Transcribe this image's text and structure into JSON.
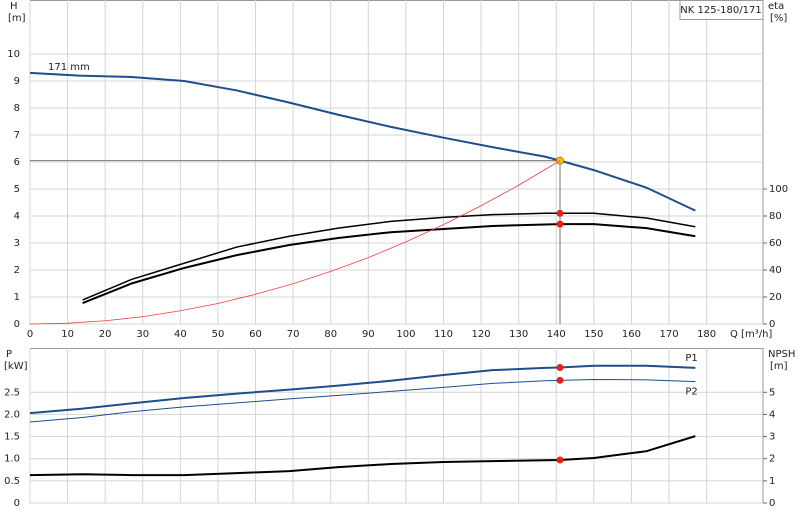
{
  "chart_data": [
    {
      "type": "line",
      "title": "NK 125-180/171",
      "ylabel": "H",
      "yunit": "[m]",
      "y2label": "eta",
      "y2unit": "[%]",
      "xlabel": "Q [m³/h]",
      "annotation": "171 mm",
      "xlim": [
        0,
        195
      ],
      "xticks": [
        0,
        10,
        20,
        30,
        40,
        50,
        60,
        70,
        80,
        90,
        100,
        110,
        120,
        130,
        140,
        150,
        160,
        170,
        180
      ],
      "ylim": [
        0,
        12
      ],
      "yticks": [
        0,
        1,
        2,
        3,
        4,
        5,
        6,
        7,
        8,
        9,
        10
      ],
      "y2lim": [
        0,
        240
      ],
      "y2ticks": [
        0,
        20,
        40,
        60,
        80,
        100
      ],
      "grid": true,
      "duty_x": 141,
      "duty_y": 6.05,
      "series": [
        {
          "color": "#1f4e8c",
          "width": 2,
          "dot_color": "#f5c400",
          "x": [
            0,
            13,
            27,
            41,
            55,
            69,
            82,
            96,
            110,
            123,
            137,
            141,
            150,
            164,
            177
          ],
          "values": [
            9.3,
            9.2,
            9.15,
            9.0,
            8.65,
            8.2,
            7.75,
            7.3,
            6.9,
            6.55,
            6.2,
            6.05,
            5.7,
            5.05,
            4.2
          ]
        },
        {
          "color": "#000000",
          "width": 1.5,
          "axis": "y2",
          "dot_color": "#e8201a",
          "x": [
            14,
            27,
            41,
            55,
            69,
            82,
            96,
            110,
            123,
            137,
            141,
            150,
            164,
            177
          ],
          "values": [
            17.8,
            33,
            45,
            57,
            65,
            71,
            76,
            79,
            81,
            82,
            82,
            82,
            78.5,
            72
          ]
        },
        {
          "color": "#000000",
          "width": 2,
          "axis": "y2",
          "dot_color": "#e8201a",
          "x": [
            14,
            27,
            41,
            55,
            69,
            82,
            96,
            110,
            123,
            137,
            141,
            150,
            164,
            177
          ],
          "values": [
            15.5,
            30,
            41.5,
            51,
            58.5,
            63.7,
            68,
            70.4,
            72.6,
            73.7,
            74,
            74,
            71,
            65
          ]
        },
        {
          "color": "#f04040",
          "width": 0.8,
          "x": [
            0,
            10,
            20,
            30,
            40,
            50,
            60,
            70,
            80,
            90,
            100,
            110,
            120,
            130,
            141
          ],
          "values": [
            0,
            0.03,
            0.12,
            0.27,
            0.49,
            0.76,
            1.1,
            1.49,
            1.95,
            2.46,
            3.04,
            3.68,
            4.38,
            5.14,
            6.05
          ]
        }
      ]
    },
    {
      "type": "line",
      "ylabel": "P",
      "yunit": "[kW]",
      "y2label": "NPSH",
      "y2unit": "[m]",
      "xlim": [
        0,
        195
      ],
      "xticks": [
        0,
        10,
        20,
        30,
        40,
        50,
        60,
        70,
        80,
        90,
        100,
        110,
        120,
        130,
        140,
        150,
        160,
        170,
        180
      ],
      "ylim": [
        0,
        3.5
      ],
      "yticks": [
        0,
        0.5,
        {
          "value": 1,
          "label": "1.0"
        },
        1.5,
        {
          "value": 2,
          "label": "2.0"
        },
        2.5
      ],
      "y2lim": [
        0,
        7
      ],
      "y2ticks": [
        0,
        1,
        2,
        3,
        4,
        5
      ],
      "grid": true,
      "duty_x": 141,
      "series": [
        {
          "name": "P1",
          "color": "#1f4e8c",
          "width": 2,
          "dot_color": "#e8201a",
          "x": [
            0,
            14,
            27,
            41,
            55,
            69,
            82,
            96,
            110,
            123,
            137,
            141,
            150,
            164,
            177
          ],
          "values": [
            2.03,
            2.13,
            2.25,
            2.37,
            2.47,
            2.56,
            2.65,
            2.76,
            2.89,
            3.0,
            3.05,
            3.06,
            3.1,
            3.1,
            3.05
          ]
        },
        {
          "name": "P2",
          "color": "#1f4e8c",
          "width": 1,
          "dot_color": "#e8201a",
          "x": [
            0,
            14,
            27,
            41,
            55,
            69,
            82,
            96,
            110,
            123,
            137,
            141,
            150,
            164,
            177
          ],
          "values": [
            1.83,
            1.93,
            2.06,
            2.17,
            2.26,
            2.35,
            2.43,
            2.52,
            2.61,
            2.7,
            2.76,
            2.77,
            2.79,
            2.78,
            2.74
          ]
        },
        {
          "color": "#000000",
          "width": 2,
          "axis": "y2",
          "dot_color": "#e8201a",
          "x": [
            0,
            14,
            27,
            41,
            55,
            69,
            82,
            96,
            110,
            123,
            141,
            150,
            164,
            177
          ],
          "values": [
            1.26,
            1.3,
            1.26,
            1.26,
            1.35,
            1.44,
            1.62,
            1.76,
            1.85,
            1.89,
            1.94,
            2.03,
            2.34,
            3.02
          ]
        }
      ]
    }
  ]
}
